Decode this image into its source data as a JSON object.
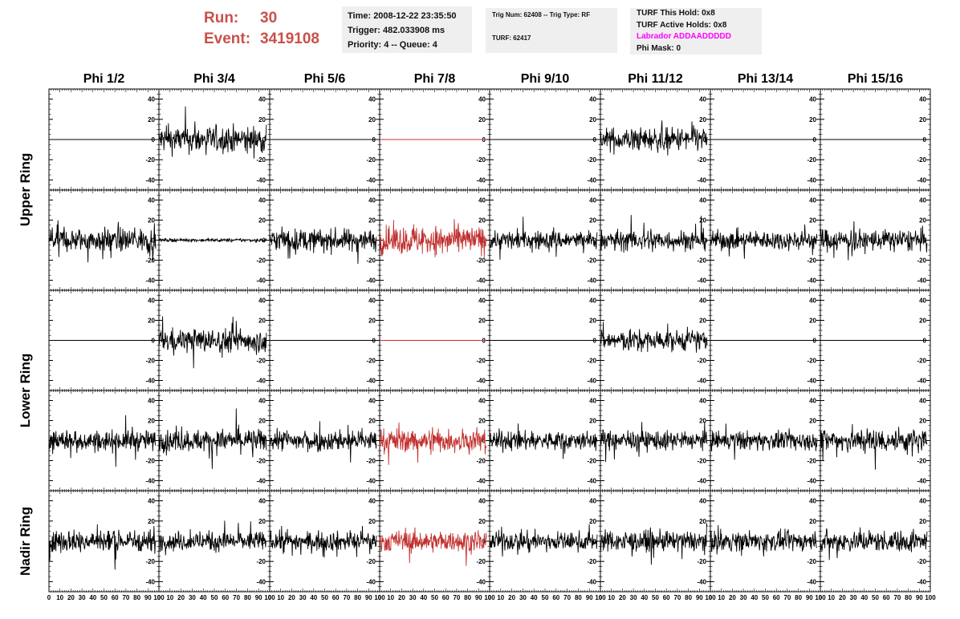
{
  "header": {
    "run_label": "Run:",
    "run_value": "30",
    "event_label": "Event:",
    "event_value": "3419108",
    "info1": [
      "Time: 2008-12-22 23:35:50",
      "Trigger: 482.033908 ms",
      "Priority: 4 -- Queue: 4"
    ],
    "info2": [
      "Trig Num: 62408 -- Trig Type: RF",
      "TURF: 62417"
    ],
    "info3": [
      "TURF This Hold: 0x8",
      "TURF Active Holds: 0x8",
      "Labrador ADDAADDDDD",
      "Phi Mask: 0"
    ]
  },
  "chart_data": {
    "type": "line",
    "phi_titles": [
      "Phi 1/2",
      "Phi 3/4",
      "Phi 5/6",
      "Phi 7/8",
      "Phi 9/10",
      "Phi 11/12",
      "Phi 13/14",
      "Phi 15/16"
    ],
    "ring_labels": [
      "Upper Ring",
      "Lower Ring",
      "Nadir Ring"
    ],
    "ylim": [
      -50,
      50
    ],
    "y_ticks": [
      -40,
      -20,
      0,
      20,
      40
    ],
    "xlim": [
      0,
      100
    ],
    "x_ticks": [
      "0",
      "10",
      "20",
      "30",
      "40",
      "50",
      "60",
      "70",
      "80",
      "90",
      "100"
    ],
    "rows": 5,
    "columns": 8,
    "trace_colors": {
      "normal": "#000000",
      "highlight": "#c0302f"
    },
    "highlight_column": 3,
    "grid": false,
    "panel_amplitudes": [
      [
        0,
        17,
        0,
        0,
        0,
        15,
        0,
        0
      ],
      [
        15,
        2,
        14,
        18,
        12,
        13,
        12,
        14
      ],
      [
        0,
        15,
        0,
        0,
        0,
        13,
        0,
        0
      ],
      [
        13,
        14,
        13,
        15,
        12,
        12,
        12,
        16
      ],
      [
        14,
        12,
        12,
        13,
        12,
        13,
        12,
        13
      ]
    ]
  }
}
